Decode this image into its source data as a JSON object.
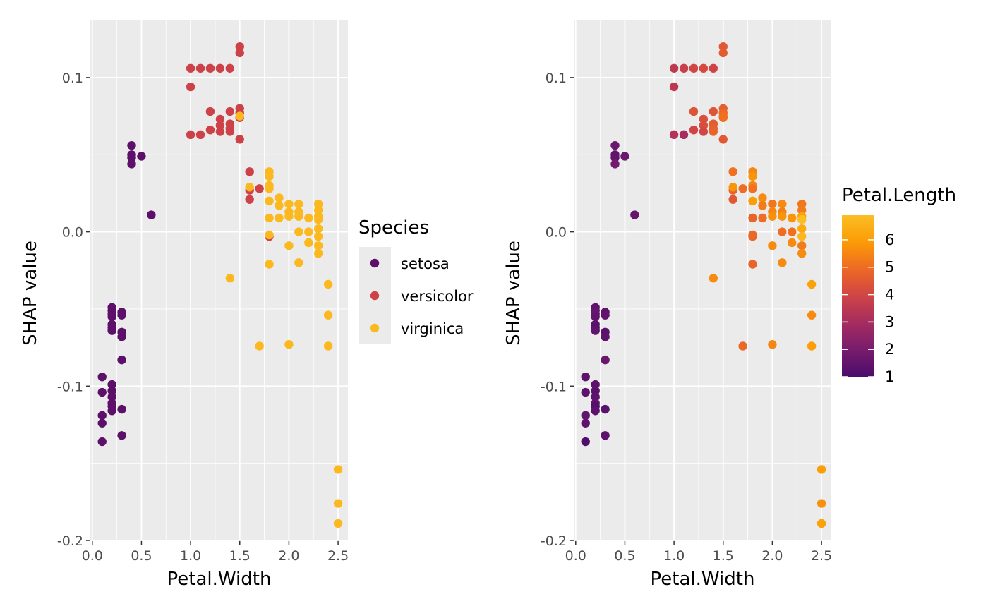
{
  "colors": {
    "panel_bg": "#ebebeb",
    "grid_major": "#ffffff",
    "tick": "#333333",
    "setosa": "#5c1069",
    "versicolor": "#cc4248",
    "virginica": "#fcb81f",
    "gradient_stops": [
      "#4a0c6b",
      "#781c6d",
      "#a52c60",
      "#cf4446",
      "#ed6925",
      "#fb9b06",
      "#fbbe23"
    ]
  },
  "chart_data": [
    {
      "type": "scatter",
      "xlabel": "Petal.Width",
      "ylabel": "SHAP value",
      "xlim": [
        -0.02,
        2.6
      ],
      "ylim": [
        -0.2,
        0.137
      ],
      "xticks": [
        0.0,
        0.5,
        1.0,
        1.5,
        2.0,
        2.5
      ],
      "xtick_labels": [
        "0.0",
        "0.5",
        "1.0",
        "1.5",
        "2.0",
        "2.5"
      ],
      "yticks": [
        -0.2,
        -0.1,
        0.0,
        0.1
      ],
      "ytick_labels": [
        "-0.2",
        "-0.1",
        "0.0",
        "0.1"
      ],
      "color_by": "category",
      "legend": {
        "title": "Species",
        "placement": "right",
        "entries": [
          "setosa",
          "versicolor",
          "virginica"
        ]
      },
      "series": [
        {
          "name": "setosa",
          "points": [
            [
              0.1,
              -0.094
            ],
            [
              0.1,
              -0.104
            ],
            [
              0.1,
              -0.119
            ],
            [
              0.1,
              -0.124
            ],
            [
              0.1,
              -0.136
            ],
            [
              0.2,
              -0.049
            ],
            [
              0.2,
              -0.051
            ],
            [
              0.2,
              -0.053
            ],
            [
              0.2,
              -0.055
            ],
            [
              0.2,
              -0.06
            ],
            [
              0.2,
              -0.062
            ],
            [
              0.2,
              -0.064
            ],
            [
              0.2,
              -0.099
            ],
            [
              0.2,
              -0.103
            ],
            [
              0.2,
              -0.107
            ],
            [
              0.2,
              -0.111
            ],
            [
              0.2,
              -0.113
            ],
            [
              0.2,
              -0.116
            ],
            [
              0.3,
              -0.052
            ],
            [
              0.3,
              -0.054
            ],
            [
              0.3,
              -0.065
            ],
            [
              0.3,
              -0.068
            ],
            [
              0.3,
              -0.083
            ],
            [
              0.3,
              -0.115
            ],
            [
              0.3,
              -0.132
            ],
            [
              0.4,
              0.056
            ],
            [
              0.4,
              0.05
            ],
            [
              0.4,
              0.048
            ],
            [
              0.4,
              0.044
            ],
            [
              0.5,
              0.049
            ],
            [
              0.6,
              0.011
            ]
          ]
        },
        {
          "name": "versicolor",
          "points": [
            [
              1.0,
              0.106
            ],
            [
              1.1,
              0.106
            ],
            [
              1.2,
              0.106
            ],
            [
              1.3,
              0.106
            ],
            [
              1.4,
              0.106
            ],
            [
              1.0,
              0.094
            ],
            [
              1.0,
              0.063
            ],
            [
              1.1,
              0.063
            ],
            [
              1.2,
              0.078
            ],
            [
              1.2,
              0.066
            ],
            [
              1.3,
              0.073
            ],
            [
              1.3,
              0.069
            ],
            [
              1.3,
              0.065
            ],
            [
              1.4,
              0.078
            ],
            [
              1.4,
              0.07
            ],
            [
              1.4,
              0.067
            ],
            [
              1.4,
              0.065
            ],
            [
              1.5,
              0.12
            ],
            [
              1.5,
              0.116
            ],
            [
              1.5,
              0.08
            ],
            [
              1.5,
              0.077
            ],
            [
              1.5,
              0.074
            ],
            [
              1.5,
              0.06
            ],
            [
              1.6,
              0.039
            ],
            [
              1.6,
              0.027
            ],
            [
              1.6,
              0.021
            ],
            [
              1.7,
              0.028
            ],
            [
              1.8,
              -0.003
            ]
          ]
        },
        {
          "name": "virginica",
          "points": [
            [
              1.4,
              -0.03
            ],
            [
              1.5,
              0.075
            ],
            [
              1.6,
              0.029
            ],
            [
              1.7,
              -0.074
            ],
            [
              1.8,
              0.039
            ],
            [
              1.8,
              0.036
            ],
            [
              1.8,
              0.03
            ],
            [
              1.8,
              0.028
            ],
            [
              1.8,
              0.02
            ],
            [
              1.8,
              0.009
            ],
            [
              1.8,
              -0.002
            ],
            [
              1.8,
              -0.021
            ],
            [
              1.9,
              0.022
            ],
            [
              1.9,
              0.017
            ],
            [
              1.9,
              0.009
            ],
            [
              2.0,
              0.018
            ],
            [
              2.0,
              0.013
            ],
            [
              2.0,
              0.01
            ],
            [
              2.0,
              -0.009
            ],
            [
              2.0,
              -0.073
            ],
            [
              2.1,
              0.018
            ],
            [
              2.1,
              0.013
            ],
            [
              2.1,
              0.01
            ],
            [
              2.1,
              0.0
            ],
            [
              2.1,
              -0.02
            ],
            [
              2.2,
              0.009
            ],
            [
              2.2,
              0.0
            ],
            [
              2.2,
              -0.007
            ],
            [
              2.3,
              0.018
            ],
            [
              2.3,
              0.014
            ],
            [
              2.3,
              0.01
            ],
            [
              2.3,
              0.008
            ],
            [
              2.3,
              0.002
            ],
            [
              2.3,
              -0.003
            ],
            [
              2.3,
              -0.009
            ],
            [
              2.3,
              -0.014
            ],
            [
              2.4,
              -0.034
            ],
            [
              2.4,
              -0.054
            ],
            [
              2.4,
              -0.074
            ],
            [
              2.5,
              -0.154
            ],
            [
              2.5,
              -0.176
            ],
            [
              2.5,
              -0.189
            ]
          ]
        }
      ]
    },
    {
      "type": "scatter",
      "xlabel": "Petal.Width",
      "ylabel": "SHAP value",
      "xlim": [
        -0.02,
        2.6
      ],
      "ylim": [
        -0.2,
        0.137
      ],
      "xticks": [
        0.0,
        0.5,
        1.0,
        1.5,
        2.0,
        2.5
      ],
      "xtick_labels": [
        "0.0",
        "0.5",
        "1.0",
        "1.5",
        "2.0",
        "2.5"
      ],
      "yticks": [
        -0.2,
        -0.1,
        0.0,
        0.1
      ],
      "ytick_labels": [
        "-0.2",
        "-0.1",
        "0.0",
        "0.1"
      ],
      "color_by": "Petal.Length",
      "colorbar": {
        "title": "Petal.Length",
        "placement": "right",
        "range": [
          1,
          6.9
        ],
        "ticks": [
          1,
          2,
          3,
          4,
          5,
          6
        ],
        "tick_labels": [
          "1",
          "2",
          "3",
          "4",
          "5",
          "6"
        ]
      },
      "points": [
        [
          0.1,
          -0.094,
          1.4
        ],
        [
          0.1,
          -0.104,
          1.4
        ],
        [
          0.1,
          -0.119,
          1.5
        ],
        [
          0.1,
          -0.124,
          1.4
        ],
        [
          0.1,
          -0.136,
          1.1
        ],
        [
          0.2,
          -0.049,
          1.4
        ],
        [
          0.2,
          -0.051,
          1.5
        ],
        [
          0.2,
          -0.053,
          1.6
        ],
        [
          0.2,
          -0.055,
          1.5
        ],
        [
          0.2,
          -0.06,
          1.4
        ],
        [
          0.2,
          -0.062,
          1.3
        ],
        [
          0.2,
          -0.064,
          1.5
        ],
        [
          0.2,
          -0.099,
          1.4
        ],
        [
          0.2,
          -0.103,
          1.3
        ],
        [
          0.2,
          -0.107,
          1.4
        ],
        [
          0.2,
          -0.111,
          1.5
        ],
        [
          0.2,
          -0.113,
          1.2
        ],
        [
          0.2,
          -0.116,
          1.4
        ],
        [
          0.3,
          -0.052,
          1.4
        ],
        [
          0.3,
          -0.054,
          1.5
        ],
        [
          0.3,
          -0.065,
          1.3
        ],
        [
          0.3,
          -0.068,
          1.4
        ],
        [
          0.3,
          -0.083,
          1.7
        ],
        [
          0.3,
          -0.115,
          1.3
        ],
        [
          0.3,
          -0.132,
          1.4
        ],
        [
          0.4,
          0.056,
          1.7
        ],
        [
          0.4,
          0.05,
          1.5
        ],
        [
          0.4,
          0.048,
          1.5
        ],
        [
          0.4,
          0.044,
          1.9
        ],
        [
          0.5,
          0.049,
          1.7
        ],
        [
          0.6,
          0.011,
          1.6
        ],
        [
          1.0,
          0.106,
          3.5
        ],
        [
          1.1,
          0.106,
          3.8
        ],
        [
          1.2,
          0.106,
          4.0
        ],
        [
          1.3,
          0.106,
          4.1
        ],
        [
          1.4,
          0.106,
          3.9
        ],
        [
          1.0,
          0.094,
          3.5
        ],
        [
          1.0,
          0.063,
          3.3
        ],
        [
          1.1,
          0.063,
          3.0
        ],
        [
          1.2,
          0.078,
          4.4
        ],
        [
          1.2,
          0.066,
          4.0
        ],
        [
          1.3,
          0.073,
          4.3
        ],
        [
          1.3,
          0.069,
          4.2
        ],
        [
          1.3,
          0.065,
          4.0
        ],
        [
          1.4,
          0.078,
          4.4
        ],
        [
          1.4,
          0.07,
          4.6
        ],
        [
          1.4,
          0.067,
          4.7
        ],
        [
          1.4,
          0.065,
          4.8
        ],
        [
          1.5,
          0.12,
          4.5
        ],
        [
          1.5,
          0.116,
          4.6
        ],
        [
          1.5,
          0.08,
          4.7
        ],
        [
          1.5,
          0.077,
          4.9
        ],
        [
          1.5,
          0.074,
          5.0
        ],
        [
          1.5,
          0.06,
          4.5
        ],
        [
          1.6,
          0.039,
          5.1
        ],
        [
          1.6,
          0.027,
          4.8
        ],
        [
          1.6,
          0.021,
          4.5
        ],
        [
          1.7,
          0.028,
          5.0
        ],
        [
          1.8,
          -0.003,
          4.8
        ],
        [
          1.4,
          -0.03,
          5.6
        ],
        [
          1.5,
          0.075,
          5.1
        ],
        [
          1.6,
          0.029,
          5.8
        ],
        [
          1.7,
          -0.074,
          4.9
        ],
        [
          1.8,
          0.039,
          5.5
        ],
        [
          1.8,
          0.036,
          5.8
        ],
        [
          1.8,
          0.03,
          5.5
        ],
        [
          1.8,
          0.028,
          5.1
        ],
        [
          1.8,
          0.02,
          6.0
        ],
        [
          1.8,
          0.009,
          4.8
        ],
        [
          1.8,
          -0.002,
          4.9
        ],
        [
          1.8,
          -0.021,
          4.8
        ],
        [
          1.9,
          0.022,
          5.6
        ],
        [
          1.9,
          0.017,
          5.3
        ],
        [
          1.9,
          0.009,
          5.0
        ],
        [
          2.0,
          0.018,
          5.2
        ],
        [
          2.0,
          0.013,
          5.5
        ],
        [
          2.0,
          0.01,
          5.7
        ],
        [
          2.0,
          -0.009,
          5.6
        ],
        [
          2.0,
          -0.073,
          5.5
        ],
        [
          2.1,
          0.018,
          5.6
        ],
        [
          2.1,
          0.013,
          5.4
        ],
        [
          2.1,
          0.01,
          5.8
        ],
        [
          2.1,
          0.0,
          5.0
        ],
        [
          2.1,
          -0.02,
          5.6
        ],
        [
          2.2,
          0.009,
          5.8
        ],
        [
          2.2,
          0.0,
          5.1
        ],
        [
          2.2,
          -0.007,
          5.6
        ],
        [
          2.3,
          0.018,
          5.2
        ],
        [
          2.3,
          0.014,
          5.3
        ],
        [
          2.3,
          0.01,
          6.1
        ],
        [
          2.3,
          0.008,
          6.9
        ],
        [
          2.3,
          0.002,
          6.3
        ],
        [
          2.3,
          -0.003,
          6.7
        ],
        [
          2.3,
          -0.009,
          5.3
        ],
        [
          2.3,
          -0.014,
          5.6
        ],
        [
          2.4,
          -0.034,
          6.1
        ],
        [
          2.4,
          -0.054,
          5.6
        ],
        [
          2.4,
          -0.074,
          6.0
        ],
        [
          2.5,
          -0.154,
          6.0
        ],
        [
          2.5,
          -0.176,
          5.7
        ],
        [
          2.5,
          -0.189,
          6.1
        ]
      ]
    }
  ]
}
